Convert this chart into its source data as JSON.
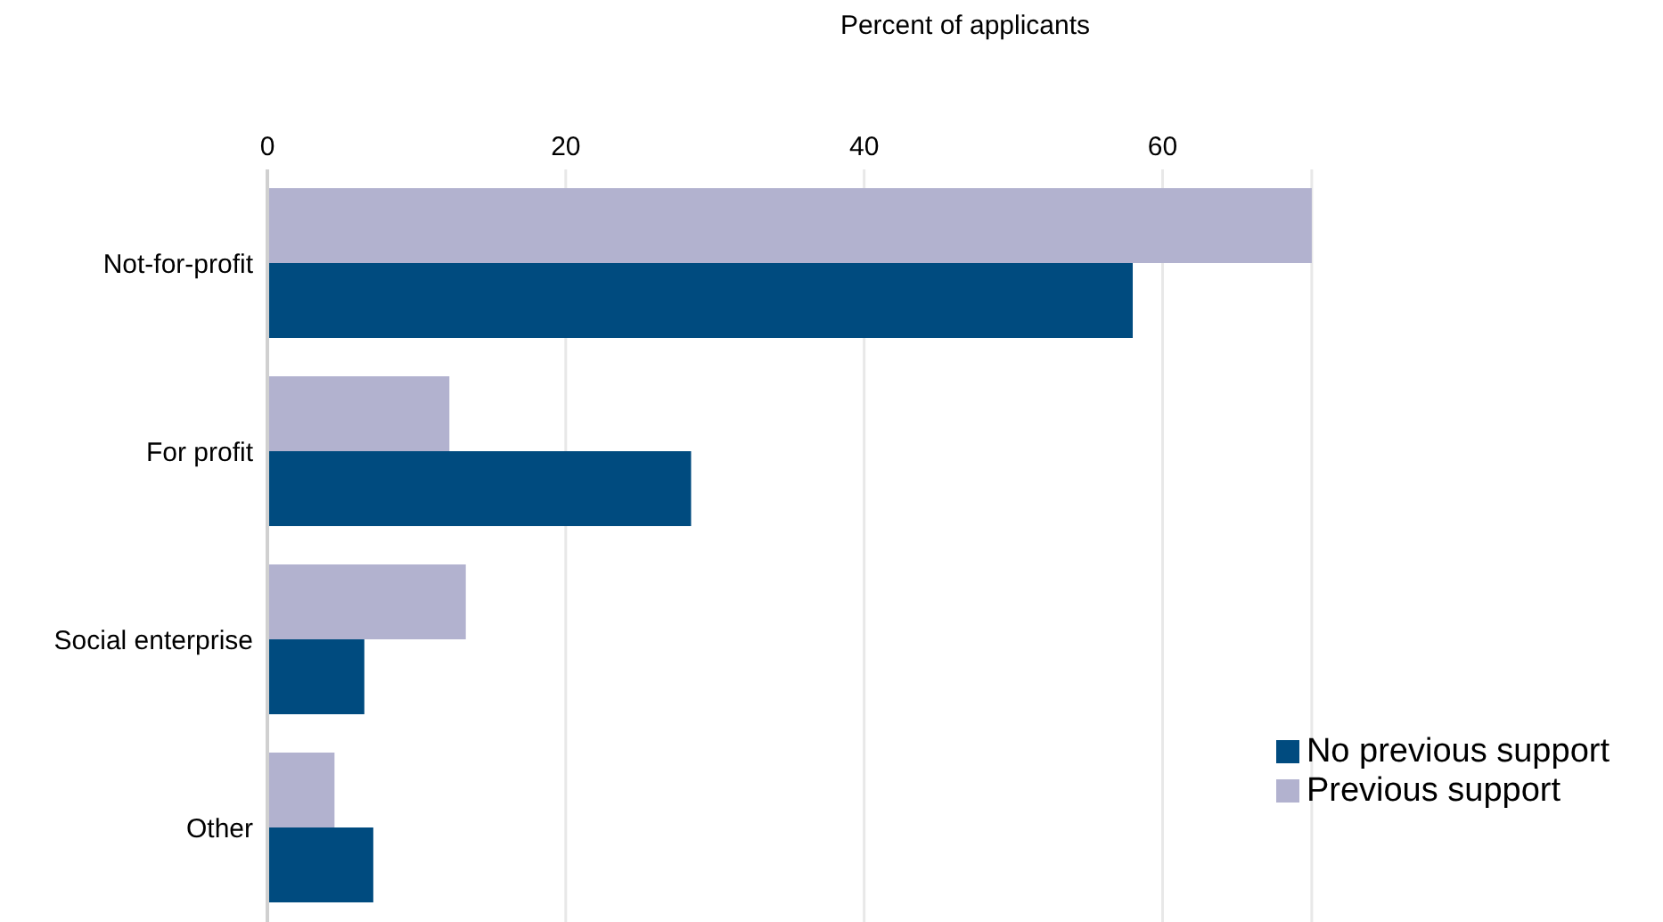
{
  "chart_data": {
    "type": "bar",
    "orientation": "horizontal",
    "xlabel": "Percent of applicants",
    "categories": [
      "Not-for-profit",
      "For profit",
      "Social enterprise",
      "Other"
    ],
    "series": [
      {
        "name": "Previous support",
        "color": "#b2b2cf",
        "values": [
          70,
          12.2,
          13.3,
          4.5
        ]
      },
      {
        "name": "No previous support",
        "color": "#004b7f",
        "values": [
          58,
          28.4,
          6.5,
          7.1
        ]
      }
    ],
    "xlim": [
      0,
      70
    ],
    "xticks": [
      0,
      20,
      40,
      60
    ],
    "grid": "x",
    "legend": "bottom right"
  }
}
